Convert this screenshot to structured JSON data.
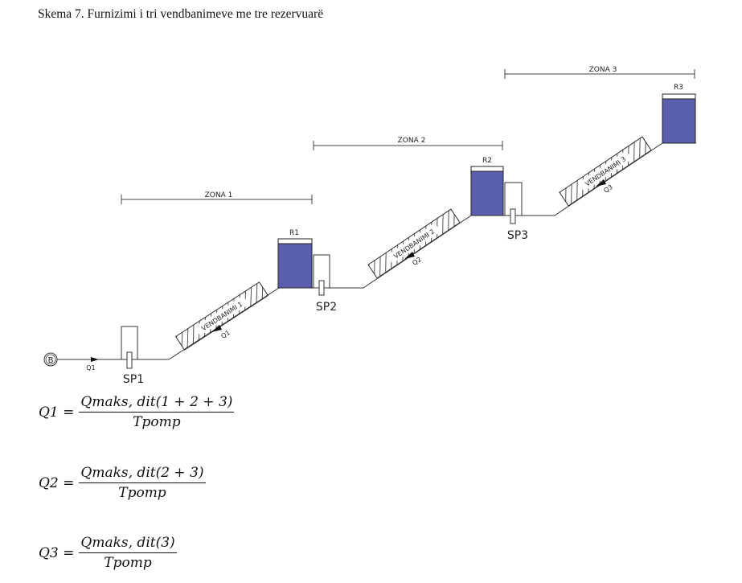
{
  "title": "Skema 7. Furnizimi i tri vendbanimeve me tre rezervuarë",
  "source_label": "B",
  "zones": [
    "ZONA 1",
    "ZONA 2",
    "ZONA 3"
  ],
  "reservoirs": [
    "R1",
    "R2",
    "R3"
  ],
  "pump_stations": [
    "SP1",
    "SP2",
    "SP3"
  ],
  "settlements": [
    "VENDBANIMI 1",
    "VENDBANIMI 2",
    "VENDBANIMI 3"
  ],
  "flows": [
    "Q1",
    "Q1",
    "Q2",
    "Q3"
  ],
  "formulas": [
    {
      "lhs": "Q1 =",
      "numerator": "Qmaks, dit(1 + 2 + 3)",
      "denominator": "Tpomp"
    },
    {
      "lhs": "Q2 =",
      "numerator": "Qmaks, dit(2 + 3)",
      "denominator": "Tpomp"
    },
    {
      "lhs": "Q3 =",
      "numerator": "Qmaks, dit(3)",
      "denominator": "Tpomp"
    }
  ],
  "colors": {
    "water": "#5a5fad",
    "line": "#333333"
  }
}
